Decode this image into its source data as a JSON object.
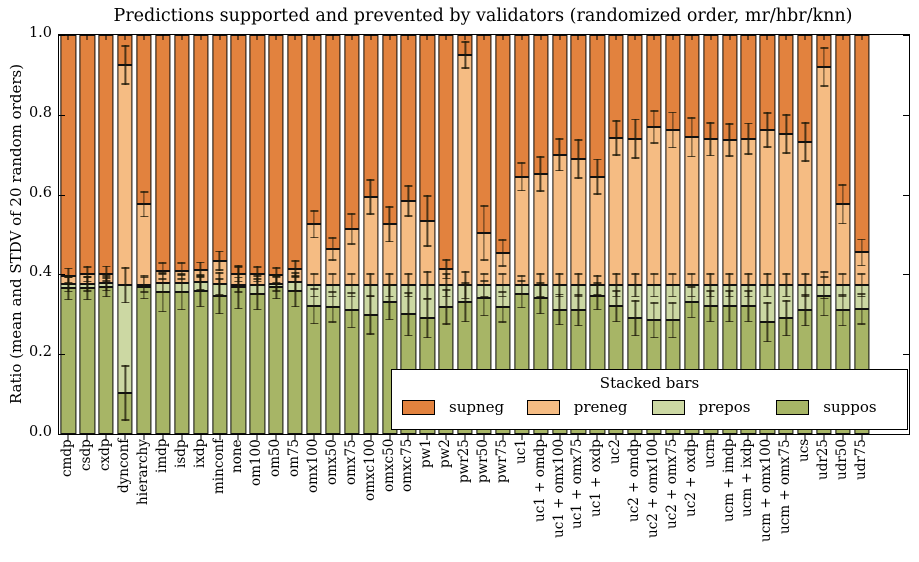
{
  "chart_data": {
    "type": "bar",
    "stacked": true,
    "title": "Predictions supported and prevented by validators (randomized order, mr/hbr/knn)",
    "xlabel": "",
    "ylabel": "Ratio (mean and STDV of 20 random orders)",
    "ylim": [
      0.0,
      1.0
    ],
    "yticks": [
      0.0,
      0.2,
      0.4,
      0.6,
      0.8,
      1.0
    ],
    "ytick_labels": [
      "0.0",
      "0.2",
      "0.4",
      "0.6",
      "0.8",
      "1.0"
    ],
    "grid": false,
    "series_order_bottom_to_top": [
      "suppos",
      "prepos",
      "preneg",
      "supneg"
    ],
    "colors": {
      "supneg": "#e2823e",
      "preneg": "#f5bc83",
      "prepos": "#ccd8a3",
      "suppos": "#a7b566"
    },
    "legend": {
      "title": "Stacked bars",
      "position": "lower right",
      "entries": [
        {
          "key": "supneg",
          "label": "supneg"
        },
        {
          "key": "preneg",
          "label": "preneg"
        },
        {
          "key": "prepos",
          "label": "prepos"
        },
        {
          "key": "suppos",
          "label": "suppos"
        }
      ]
    },
    "bars": [
      {
        "label": "cmdp",
        "suppos": 0.365,
        "prepos": 0.01,
        "preneg": 0.022,
        "supneg": 0.603,
        "std": [
          0.03,
          0.02,
          0.02
        ]
      },
      {
        "label": "csdp",
        "suppos": 0.365,
        "prepos": 0.011,
        "preneg": 0.024,
        "supneg": 0.6,
        "std": [
          0.03,
          0.02,
          0.02
        ]
      },
      {
        "label": "cxdp",
        "suppos": 0.368,
        "prepos": 0.01,
        "preneg": 0.024,
        "supneg": 0.598,
        "std": [
          0.025,
          0.02,
          0.02
        ]
      },
      {
        "label": "dynconf",
        "suppos": 0.103,
        "prepos": 0.27,
        "preneg": 0.552,
        "supneg": 0.075,
        "std": [
          0.07,
          0.045,
          0.05
        ]
      },
      {
        "label": "hierarchy",
        "suppos": 0.368,
        "prepos": 0.006,
        "preneg": 0.202,
        "supneg": 0.424,
        "std": [
          0.03,
          0.02,
          0.033
        ]
      },
      {
        "label": "imdp",
        "suppos": 0.355,
        "prepos": 0.023,
        "preneg": 0.03,
        "supneg": 0.592,
        "std": [
          0.05,
          0.025,
          0.022
        ]
      },
      {
        "label": "isdp",
        "suppos": 0.355,
        "prepos": 0.023,
        "preneg": 0.03,
        "supneg": 0.592,
        "std": [
          0.045,
          0.025,
          0.022
        ]
      },
      {
        "label": "ixdp",
        "suppos": 0.358,
        "prepos": 0.022,
        "preneg": 0.032,
        "supneg": 0.588,
        "std": [
          0.04,
          0.02,
          0.02
        ]
      },
      {
        "label": "minconf",
        "suppos": 0.345,
        "prepos": 0.031,
        "preneg": 0.058,
        "supneg": 0.566,
        "std": [
          0.045,
          0.03,
          0.025
        ]
      },
      {
        "label": "none",
        "suppos": 0.368,
        "prepos": 0.006,
        "preneg": 0.026,
        "supneg": 0.6,
        "std": [
          0.055,
          0.02,
          0.02
        ]
      },
      {
        "label": "om100",
        "suppos": 0.35,
        "prepos": 0.023,
        "preneg": 0.027,
        "supneg": 0.6,
        "std": [
          0.04,
          0.025,
          0.02
        ]
      },
      {
        "label": "om50",
        "suppos": 0.368,
        "prepos": 0.008,
        "preneg": 0.022,
        "supneg": 0.602,
        "std": [
          0.03,
          0.02,
          0.02
        ]
      },
      {
        "label": "om75",
        "suppos": 0.358,
        "prepos": 0.022,
        "preneg": 0.033,
        "supneg": 0.587,
        "std": [
          0.04,
          0.025,
          0.022
        ]
      },
      {
        "label": "omx100",
        "suppos": 0.32,
        "prepos": 0.053,
        "preneg": 0.153,
        "supneg": 0.474,
        "std": [
          0.045,
          0.03,
          0.035
        ]
      },
      {
        "label": "omx50",
        "suppos": 0.318,
        "prepos": 0.055,
        "preneg": 0.091,
        "supneg": 0.536,
        "std": [
          0.04,
          0.03,
          0.03
        ]
      },
      {
        "label": "omx75",
        "suppos": 0.31,
        "prepos": 0.063,
        "preneg": 0.141,
        "supneg": 0.486,
        "std": [
          0.045,
          0.03,
          0.04
        ]
      },
      {
        "label": "omxc100",
        "suppos": 0.298,
        "prepos": 0.075,
        "preneg": 0.221,
        "supneg": 0.406,
        "std": [
          0.05,
          0.03,
          0.045
        ]
      },
      {
        "label": "omxc50",
        "suppos": 0.33,
        "prepos": 0.043,
        "preneg": 0.153,
        "supneg": 0.474,
        "std": [
          0.045,
          0.03,
          0.045
        ]
      },
      {
        "label": "omxc75",
        "suppos": 0.3,
        "prepos": 0.073,
        "preneg": 0.211,
        "supneg": 0.416,
        "std": [
          0.055,
          0.03,
          0.04
        ]
      },
      {
        "label": "pw1",
        "suppos": 0.29,
        "prepos": 0.083,
        "preneg": 0.161,
        "supneg": 0.466,
        "std": [
          0.05,
          0.035,
          0.065
        ]
      },
      {
        "label": "pw2",
        "suppos": 0.318,
        "prepos": 0.055,
        "preneg": 0.04,
        "supneg": 0.587,
        "std": [
          0.045,
          0.03,
          0.025
        ]
      },
      {
        "label": "pwr25",
        "suppos": 0.33,
        "prepos": 0.043,
        "preneg": 0.577,
        "supneg": 0.05,
        "std": [
          0.05,
          0.035,
          0.035
        ]
      },
      {
        "label": "pwr50",
        "suppos": 0.34,
        "prepos": 0.033,
        "preneg": 0.131,
        "supneg": 0.496,
        "std": [
          0.045,
          0.03,
          0.07
        ]
      },
      {
        "label": "pwr75",
        "suppos": 0.318,
        "prepos": 0.055,
        "preneg": 0.081,
        "supneg": 0.546,
        "std": [
          0.04,
          0.03,
          0.035
        ]
      },
      {
        "label": "uc1",
        "suppos": 0.35,
        "prepos": 0.023,
        "preneg": 0.272,
        "supneg": 0.355,
        "std": [
          0.035,
          0.025,
          0.037
        ]
      },
      {
        "label": "uc1 + omdp",
        "suppos": 0.34,
        "prepos": 0.033,
        "preneg": 0.279,
        "supneg": 0.348,
        "std": [
          0.04,
          0.03,
          0.045
        ]
      },
      {
        "label": "uc1 + omx100",
        "suppos": 0.312,
        "prepos": 0.061,
        "preneg": 0.327,
        "supneg": 0.3,
        "std": [
          0.04,
          0.03,
          0.042
        ]
      },
      {
        "label": "uc1 + omx75",
        "suppos": 0.31,
        "prepos": 0.063,
        "preneg": 0.316,
        "supneg": 0.311,
        "std": [
          0.04,
          0.03,
          0.05
        ]
      },
      {
        "label": "uc1 + oxdp",
        "suppos": 0.345,
        "prepos": 0.028,
        "preneg": 0.272,
        "supneg": 0.355,
        "std": [
          0.035,
          0.025,
          0.045
        ]
      },
      {
        "label": "uc2",
        "suppos": 0.32,
        "prepos": 0.053,
        "preneg": 0.369,
        "supneg": 0.258,
        "std": [
          0.04,
          0.03,
          0.044
        ]
      },
      {
        "label": "uc2 + omdp",
        "suppos": 0.29,
        "prepos": 0.083,
        "preneg": 0.367,
        "supneg": 0.26,
        "std": [
          0.045,
          0.03,
          0.05
        ]
      },
      {
        "label": "uc2 + omx100",
        "suppos": 0.285,
        "prepos": 0.088,
        "preneg": 0.396,
        "supneg": 0.231,
        "std": [
          0.045,
          0.03,
          0.042
        ]
      },
      {
        "label": "uc2 + omx75",
        "suppos": 0.285,
        "prepos": 0.088,
        "preneg": 0.389,
        "supneg": 0.238,
        "std": [
          0.045,
          0.03,
          0.046
        ]
      },
      {
        "label": "uc2 + oxdp",
        "suppos": 0.33,
        "prepos": 0.043,
        "preneg": 0.371,
        "supneg": 0.256,
        "std": [
          0.04,
          0.03,
          0.05
        ]
      },
      {
        "label": "ucm",
        "suppos": 0.32,
        "prepos": 0.053,
        "preneg": 0.366,
        "supneg": 0.261,
        "std": [
          0.04,
          0.03,
          0.043
        ]
      },
      {
        "label": "ucm + imdp",
        "suppos": 0.32,
        "prepos": 0.053,
        "preneg": 0.364,
        "supneg": 0.263,
        "std": [
          0.04,
          0.03,
          0.042
        ]
      },
      {
        "label": "ucm + ixdp",
        "suppos": 0.32,
        "prepos": 0.053,
        "preneg": 0.367,
        "supneg": 0.26,
        "std": [
          0.04,
          0.03,
          0.04
        ]
      },
      {
        "label": "ucm + omx100",
        "suppos": 0.28,
        "prepos": 0.093,
        "preneg": 0.389,
        "supneg": 0.238,
        "std": [
          0.05,
          0.03,
          0.045
        ]
      },
      {
        "label": "ucm + omx75",
        "suppos": 0.29,
        "prepos": 0.083,
        "preneg": 0.379,
        "supneg": 0.248,
        "std": [
          0.045,
          0.03,
          0.05
        ]
      },
      {
        "label": "ucs",
        "suppos": 0.31,
        "prepos": 0.063,
        "preneg": 0.359,
        "supneg": 0.268,
        "std": [
          0.04,
          0.03,
          0.05
        ]
      },
      {
        "label": "udr25",
        "suppos": 0.345,
        "prepos": 0.028,
        "preneg": 0.547,
        "supneg": 0.08,
        "std": [
          0.05,
          0.035,
          0.05
        ]
      },
      {
        "label": "udr50",
        "suppos": 0.31,
        "prepos": 0.063,
        "preneg": 0.203,
        "supneg": 0.424,
        "std": [
          0.04,
          0.03,
          0.05
        ]
      },
      {
        "label": "udr75",
        "suppos": 0.313,
        "prepos": 0.06,
        "preneg": 0.082,
        "supneg": 0.545,
        "std": [
          0.04,
          0.03,
          0.035
        ]
      }
    ],
    "layout": {
      "total_slots": 45
    }
  }
}
